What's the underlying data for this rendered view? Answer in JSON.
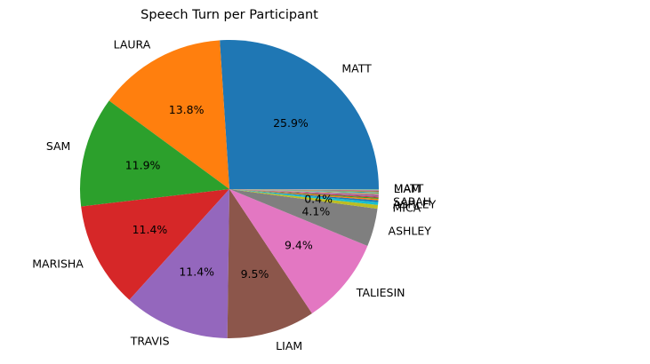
{
  "chart_data": {
    "type": "pie",
    "title": "Speech Turn per Participant",
    "start_angle_deg": 0,
    "direction": "counterclockwise",
    "slices": [
      {
        "label": "MATT",
        "value": 25.9,
        "pct_label": "25.9%",
        "color": "#1f77b4"
      },
      {
        "label": "LAURA",
        "value": 13.8,
        "pct_label": "13.8%",
        "color": "#ff7f0e"
      },
      {
        "label": "SAM",
        "value": 11.9,
        "pct_label": "11.9%",
        "color": "#2ca02c"
      },
      {
        "label": "MARISHA",
        "value": 11.4,
        "pct_label": "11.4%",
        "color": "#d62728"
      },
      {
        "label": "TRAVIS",
        "value": 11.4,
        "pct_label": "11.4%",
        "color": "#9467bd"
      },
      {
        "label": "LIAM",
        "value": 9.5,
        "pct_label": "9.5%",
        "color": "#8c564b"
      },
      {
        "label": "TALIESIN",
        "value": 9.4,
        "pct_label": "9.4%",
        "color": "#e377c2"
      },
      {
        "label": "ASHLEY",
        "value": 4.1,
        "pct_label": "4.1%",
        "color": "#7f7f7f"
      },
      {
        "label": "MICA",
        "value": 0.4,
        "pct_label": "0.4%",
        "color": "#bcbd22"
      },
      {
        "label": "ASHLEY",
        "value": 0.3,
        "pct_label": "",
        "color": "#17becf"
      },
      {
        "label": "SARAH",
        "value": 0.2,
        "pct_label": "",
        "color": "#1f77b4"
      },
      {
        "label": "",
        "value": 0.15,
        "pct_label": "",
        "color": "#ff7f0e"
      },
      {
        "label": "",
        "value": 0.12,
        "pct_label": "",
        "color": "#2ca02c"
      },
      {
        "label": "",
        "value": 0.1,
        "pct_label": "",
        "color": "#d62728"
      },
      {
        "label": "",
        "value": 0.1,
        "pct_label": "",
        "color": "#9467bd"
      },
      {
        "label": "",
        "value": 0.08,
        "pct_label": "",
        "color": "#8c564b"
      },
      {
        "label": "",
        "value": 0.08,
        "pct_label": "",
        "color": "#e377c2"
      },
      {
        "label": "",
        "value": 0.07,
        "pct_label": "",
        "color": "#7f7f7f"
      },
      {
        "label": "",
        "value": 0.06,
        "pct_label": "",
        "color": "#bcbd22"
      },
      {
        "label": "",
        "value": 0.06,
        "pct_label": "",
        "color": "#17becf"
      },
      {
        "label": "",
        "value": 0.05,
        "pct_label": "",
        "color": "#1f77b4"
      },
      {
        "label": "",
        "value": 0.05,
        "pct_label": "",
        "color": "#ff7f0e"
      },
      {
        "label": "",
        "value": 0.04,
        "pct_label": "",
        "color": "#2ca02c"
      },
      {
        "label": "",
        "value": 0.04,
        "pct_label": "",
        "color": "#d62728"
      },
      {
        "label": "",
        "value": 0.04,
        "pct_label": "",
        "color": "#9467bd"
      },
      {
        "label": "",
        "value": 0.03,
        "pct_label": "",
        "color": "#8c564b"
      },
      {
        "label": "",
        "value": 0.03,
        "pct_label": "",
        "color": "#e377c2"
      },
      {
        "label": "",
        "value": 0.03,
        "pct_label": "",
        "color": "#7f7f7f"
      },
      {
        "label": "LIAM",
        "value": 0.03,
        "pct_label": "",
        "color": "#bcbd22"
      },
      {
        "label": "MATT",
        "value": 0.03,
        "pct_label": "",
        "color": "#17becf"
      }
    ]
  }
}
